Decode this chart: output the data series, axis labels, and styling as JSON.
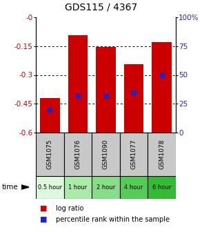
{
  "title": "GDS115 / 4367",
  "samples": [
    "GSM1075",
    "GSM1076",
    "GSM1090",
    "GSM1077",
    "GSM1078"
  ],
  "time_labels": [
    "0.5 hour",
    "1 hour",
    "2 hour",
    "4 hour",
    "6 hour"
  ],
  "time_colors": [
    "#ddfadd",
    "#aaeaaa",
    "#88dd88",
    "#55cc55",
    "#33bb33"
  ],
  "bar_tops": [
    -0.42,
    -0.095,
    -0.155,
    -0.245,
    -0.13
  ],
  "bar_bottom": -0.6,
  "percentile_rank": [
    20,
    32,
    32,
    35,
    50
  ],
  "ylim_left": [
    -0.6,
    0.0
  ],
  "ylim_right": [
    0,
    100
  ],
  "yticks_left": [
    0.0,
    -0.15,
    -0.3,
    -0.45,
    -0.6
  ],
  "yticks_right": [
    100,
    75,
    50,
    25,
    0
  ],
  "bar_color": "#cc0000",
  "percentile_color": "#2222cc",
  "bar_width": 0.7,
  "left_label_color": "#cc0000",
  "right_label_color": "#2222cc",
  "sample_bg": "#c8c8c8",
  "legend_red": "#cc0000",
  "legend_blue": "#2222cc"
}
